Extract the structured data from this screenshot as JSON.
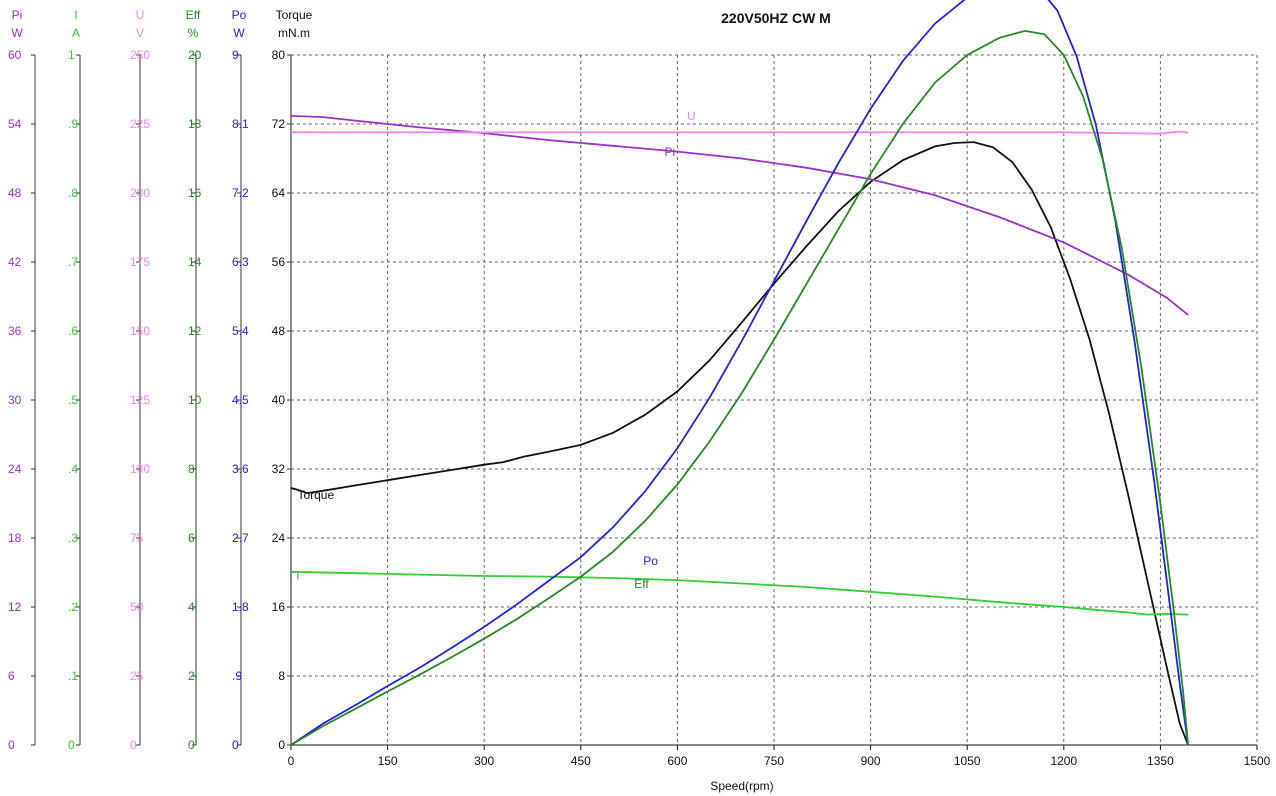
{
  "chart_data": {
    "type": "line",
    "title": "220V50HZ CW  M",
    "xlabel": "Speed(rpm)",
    "xlim": [
      0,
      1500
    ],
    "x_ticks": [
      "0",
      "150",
      "300",
      "450",
      "600",
      "750",
      "900",
      "1050",
      "1200",
      "1350",
      "1500"
    ],
    "grid": true,
    "axes": [
      {
        "key": "Pi",
        "name": "Pi",
        "unit": "W",
        "color": "#9933cc",
        "max": 60,
        "ticks": [
          "0",
          "6",
          "12",
          "18",
          "24",
          "30",
          "36",
          "42",
          "48",
          "54",
          "60"
        ]
      },
      {
        "key": "I",
        "name": "I",
        "unit": "A",
        "color": "#33cc33",
        "max": 1,
        "ticks": [
          "0",
          ".1",
          ".2",
          ".3",
          ".4",
          ".5",
          ".6",
          ".7",
          ".8",
          ".9",
          "1"
        ]
      },
      {
        "key": "U",
        "name": "U",
        "unit": "V",
        "color": "#ee88ee",
        "max": 250,
        "ticks": [
          "0",
          "25",
          "50",
          "75",
          "100",
          "125",
          "150",
          "175",
          "200",
          "225",
          "250"
        ]
      },
      {
        "key": "Eff",
        "name": "Eff",
        "unit": "%",
        "color": "#228b22",
        "max": 20,
        "ticks": [
          "0",
          "2",
          "4",
          "6",
          "8",
          "10",
          "12",
          "14",
          "16",
          "18",
          "20"
        ]
      },
      {
        "key": "Po",
        "name": "Po",
        "unit": "W",
        "color": "#2222dd",
        "max": 9,
        "ticks": [
          "0",
          ".9",
          "1.8",
          "2.7",
          "3.6",
          "4.5",
          "5.4",
          "6.3",
          "7.2",
          "8.1",
          "9"
        ]
      },
      {
        "key": "Torque",
        "name": "Torque",
        "unit": "mN.m",
        "color": "#111111",
        "max": 80,
        "ticks": [
          "0",
          "8",
          "16",
          "24",
          "32",
          "40",
          "48",
          "56",
          "64",
          "72",
          "80"
        ]
      }
    ],
    "series": [
      {
        "name": "Torque",
        "axis": "Torque",
        "color": "#111111",
        "label": "Torque",
        "label_at": [
          10,
          28.5
        ],
        "points": [
          [
            0,
            29.8
          ],
          [
            10,
            29.6
          ],
          [
            25,
            29.2
          ],
          [
            60,
            29.6
          ],
          [
            100,
            30.1
          ],
          [
            150,
            30.7
          ],
          [
            200,
            31.3
          ],
          [
            250,
            31.9
          ],
          [
            300,
            32.5
          ],
          [
            330,
            32.8
          ],
          [
            360,
            33.4
          ],
          [
            400,
            34.0
          ],
          [
            450,
            34.8
          ],
          [
            500,
            36.2
          ],
          [
            550,
            38.3
          ],
          [
            600,
            41.0
          ],
          [
            650,
            44.6
          ],
          [
            700,
            49.0
          ],
          [
            750,
            53.5
          ],
          [
            800,
            57.8
          ],
          [
            850,
            61.9
          ],
          [
            900,
            65.3
          ],
          [
            950,
            67.8
          ],
          [
            1000,
            69.4
          ],
          [
            1030,
            69.8
          ],
          [
            1060,
            69.9
          ],
          [
            1090,
            69.3
          ],
          [
            1120,
            67.6
          ],
          [
            1150,
            64.4
          ],
          [
            1180,
            60.0
          ],
          [
            1210,
            54.0
          ],
          [
            1240,
            47.0
          ],
          [
            1270,
            38.5
          ],
          [
            1300,
            29.0
          ],
          [
            1330,
            19.0
          ],
          [
            1360,
            9.0
          ],
          [
            1380,
            2.5
          ],
          [
            1393,
            0
          ]
        ]
      },
      {
        "name": "Pi",
        "axis": "Pi",
        "color": "#9933cc",
        "label": "Pi",
        "label_at": [
          580,
          51.2
        ],
        "points": [
          [
            0,
            54.7
          ],
          [
            50,
            54.6
          ],
          [
            100,
            54.3
          ],
          [
            150,
            54.0
          ],
          [
            200,
            53.7
          ],
          [
            300,
            53.2
          ],
          [
            400,
            52.6
          ],
          [
            500,
            52.1
          ],
          [
            600,
            51.6
          ],
          [
            700,
            51.0
          ],
          [
            800,
            50.2
          ],
          [
            900,
            49.2
          ],
          [
            1000,
            47.8
          ],
          [
            1100,
            45.9
          ],
          [
            1200,
            43.7
          ],
          [
            1300,
            40.9
          ],
          [
            1360,
            38.9
          ],
          [
            1393,
            37.4
          ]
        ]
      },
      {
        "name": "U",
        "axis": "U",
        "color": "#ee88ee",
        "label": "U",
        "label_at": [
          615,
          226.5
        ],
        "points": [
          [
            0,
            222
          ],
          [
            200,
            222
          ],
          [
            400,
            222
          ],
          [
            600,
            222
          ],
          [
            800,
            222
          ],
          [
            1000,
            222
          ],
          [
            1200,
            222
          ],
          [
            1350,
            221.5
          ],
          [
            1380,
            222.3
          ],
          [
            1393,
            221.8
          ]
        ]
      },
      {
        "name": "I",
        "axis": "I",
        "color": "#33cc33",
        "label": "I",
        "label_at": [
          8,
          0.24
        ],
        "points": [
          [
            0,
            0.251
          ],
          [
            100,
            0.249
          ],
          [
            200,
            0.247
          ],
          [
            300,
            0.245
          ],
          [
            400,
            0.244
          ],
          [
            500,
            0.242
          ],
          [
            600,
            0.239
          ],
          [
            700,
            0.234
          ],
          [
            800,
            0.229
          ],
          [
            900,
            0.222
          ],
          [
            1000,
            0.215
          ],
          [
            1100,
            0.207
          ],
          [
            1200,
            0.2
          ],
          [
            1250,
            0.196
          ],
          [
            1300,
            0.192
          ],
          [
            1330,
            0.189
          ],
          [
            1360,
            0.19
          ],
          [
            1393,
            0.189
          ]
        ]
      },
      {
        "name": "Po",
        "axis": "Po",
        "color": "#2222dd",
        "label": "Po",
        "label_at": [
          547,
          2.35
        ],
        "points": [
          [
            0,
            0
          ],
          [
            50,
            0.28
          ],
          [
            100,
            0.52
          ],
          [
            150,
            0.77
          ],
          [
            200,
            1.01
          ],
          [
            250,
            1.27
          ],
          [
            300,
            1.54
          ],
          [
            350,
            1.83
          ],
          [
            400,
            2.14
          ],
          [
            450,
            2.45
          ],
          [
            500,
            2.84
          ],
          [
            550,
            3.31
          ],
          [
            600,
            3.87
          ],
          [
            650,
            4.53
          ],
          [
            700,
            5.27
          ],
          [
            750,
            6.05
          ],
          [
            800,
            6.83
          ],
          [
            850,
            7.59
          ],
          [
            900,
            8.3
          ],
          [
            950,
            8.92
          ],
          [
            1000,
            9.41
          ],
          [
            1050,
            9.75
          ],
          [
            1100,
            9.92
          ],
          [
            1130,
            9.98
          ],
          [
            1160,
            9.88
          ],
          [
            1190,
            9.58
          ],
          [
            1220,
            8.98
          ],
          [
            1250,
            8.08
          ],
          [
            1280,
            6.84
          ],
          [
            1310,
            5.26
          ],
          [
            1340,
            3.46
          ],
          [
            1365,
            1.8
          ],
          [
            1380,
            0.8
          ],
          [
            1393,
            0
          ]
        ]
      },
      {
        "name": "Eff",
        "axis": "Eff",
        "color": "#228b22",
        "label": "Eff",
        "label_at": [
          533,
          4.55
        ],
        "points": [
          [
            0,
            0
          ],
          [
            50,
            0.55
          ],
          [
            100,
            1.05
          ],
          [
            150,
            1.55
          ],
          [
            200,
            2.04
          ],
          [
            250,
            2.55
          ],
          [
            300,
            3.08
          ],
          [
            350,
            3.64
          ],
          [
            400,
            4.25
          ],
          [
            450,
            4.88
          ],
          [
            500,
            5.6
          ],
          [
            550,
            6.5
          ],
          [
            600,
            7.55
          ],
          [
            650,
            8.8
          ],
          [
            700,
            10.2
          ],
          [
            750,
            11.75
          ],
          [
            800,
            13.35
          ],
          [
            850,
            14.95
          ],
          [
            900,
            16.55
          ],
          [
            950,
            18.0
          ],
          [
            1000,
            19.2
          ],
          [
            1050,
            20.0
          ],
          [
            1100,
            20.5
          ],
          [
            1140,
            20.7
          ],
          [
            1170,
            20.6
          ],
          [
            1200,
            20.0
          ],
          [
            1230,
            18.8
          ],
          [
            1260,
            17.0
          ],
          [
            1290,
            14.4
          ],
          [
            1320,
            11.0
          ],
          [
            1350,
            7.0
          ],
          [
            1370,
            4.0
          ],
          [
            1385,
            1.6
          ],
          [
            1393,
            0
          ]
        ]
      }
    ]
  }
}
